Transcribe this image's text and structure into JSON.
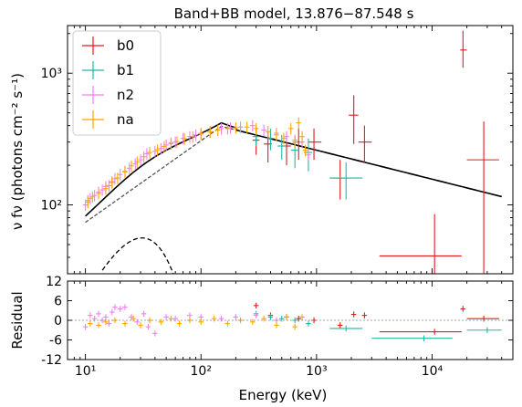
{
  "chart_data": [
    {
      "type": "scatter",
      "title": "Band+BB model, 13.876−87.548 s",
      "xlabel": "Energy (keV)",
      "ylabel": "ν fν (photons cm⁻² s⁻¹)",
      "xscale": "log",
      "yscale": "log",
      "xlim": [
        7,
        50000
      ],
      "ylim": [
        30,
        2300
      ],
      "legend": [
        "b0",
        "b1",
        "n2",
        "na"
      ],
      "legend_position": "top-left",
      "colors": {
        "b0": "#e41a1c",
        "b1": "#1fb8a6",
        "n2": "#ee82ee",
        "na": "#ffa500",
        "total_model": "#000000",
        "band_model": "#555555",
        "bb_model": "#000000"
      },
      "y_tick_labels": [
        "10²",
        "10³"
      ],
      "series": [
        {
          "name": "b0",
          "points": [
            {
              "x": 300,
              "y": 310,
              "xerr": [
                280,
                320
              ],
              "yerr": [
                240,
                380
              ]
            },
            {
              "x": 380,
              "y": 290,
              "xerr": [
                350,
                410
              ],
              "yerr": [
                210,
                360
              ]
            },
            {
              "x": 550,
              "y": 280,
              "xerr": [
                500,
                600
              ],
              "yerr": [
                200,
                350
              ]
            },
            {
              "x": 700,
              "y": 300,
              "xerr": [
                620,
                780
              ],
              "yerr": [
                220,
                380
              ]
            },
            {
              "x": 950,
              "y": 300,
              "xerr": [
                850,
                1100
              ],
              "yerr": [
                220,
                380
              ]
            },
            {
              "x": 1600,
              "y": 160,
              "xerr": [
                1350,
                1900
              ],
              "yerr": [
                110,
                220
              ]
            },
            {
              "x": 2100,
              "y": 480,
              "xerr": [
                1900,
                2300
              ],
              "yerr": [
                290,
                680
              ]
            },
            {
              "x": 2600,
              "y": 300,
              "xerr": [
                2300,
                3000
              ],
              "yerr": [
                210,
                400
              ]
            },
            {
              "x": 10500,
              "y": 41,
              "xerr": [
                3500,
                18000
              ],
              "yerr": [
                30,
                85
              ]
            },
            {
              "x": 18500,
              "y": 1500,
              "xerr": [
                17500,
                20000
              ],
              "yerr": [
                1100,
                2100
              ]
            },
            {
              "x": 28000,
              "y": 220,
              "xerr": [
                20000,
                38000
              ],
              "yerr": [
                30,
                430
              ]
            }
          ]
        },
        {
          "name": "b1",
          "points": [
            {
              "x": 300,
              "y": 330,
              "xerr": [
                280,
                320
              ],
              "yerr": [
                280,
                390
              ]
            },
            {
              "x": 400,
              "y": 320,
              "xerr": [
                370,
                430
              ],
              "yerr": [
                260,
                380
              ]
            },
            {
              "x": 500,
              "y": 280,
              "xerr": [
                460,
                540
              ],
              "yerr": [
                220,
                340
              ]
            },
            {
              "x": 650,
              "y": 260,
              "xerr": [
                600,
                700
              ],
              "yerr": [
                190,
                330
              ]
            },
            {
              "x": 850,
              "y": 250,
              "xerr": [
                780,
                920
              ],
              "yerr": [
                180,
                320
              ]
            },
            {
              "x": 1800,
              "y": 160,
              "xerr": [
                1300,
                2500
              ],
              "yerr": [
                110,
                210
              ]
            }
          ]
        },
        {
          "name": "n2",
          "points": [
            {
              "x": 10,
              "y": 100
            },
            {
              "x": 10.5,
              "y": 108
            },
            {
              "x": 11,
              "y": 112
            },
            {
              "x": 12,
              "y": 118
            },
            {
              "x": 13,
              "y": 125
            },
            {
              "x": 14,
              "y": 130
            },
            {
              "x": 15,
              "y": 138
            },
            {
              "x": 16,
              "y": 140
            },
            {
              "x": 17,
              "y": 150
            },
            {
              "x": 18,
              "y": 158
            },
            {
              "x": 20,
              "y": 170
            },
            {
              "x": 22,
              "y": 180
            },
            {
              "x": 24,
              "y": 190
            },
            {
              "x": 27,
              "y": 205
            },
            {
              "x": 30,
              "y": 220
            },
            {
              "x": 34,
              "y": 245
            },
            {
              "x": 40,
              "y": 255
            },
            {
              "x": 45,
              "y": 268
            },
            {
              "x": 50,
              "y": 285
            },
            {
              "x": 55,
              "y": 295
            },
            {
              "x": 60,
              "y": 300
            },
            {
              "x": 70,
              "y": 320
            },
            {
              "x": 80,
              "y": 330
            },
            {
              "x": 90,
              "y": 340
            },
            {
              "x": 100,
              "y": 350
            },
            {
              "x": 120,
              "y": 360
            },
            {
              "x": 150,
              "y": 380
            },
            {
              "x": 180,
              "y": 385
            },
            {
              "x": 220,
              "y": 390
            },
            {
              "x": 280,
              "y": 400
            },
            {
              "x": 350,
              "y": 370
            },
            {
              "x": 450,
              "y": 350
            },
            {
              "x": 550,
              "y": 330
            },
            {
              "x": 650,
              "y": 310
            },
            {
              "x": 750,
              "y": 300
            },
            {
              "x": 850,
              "y": 240
            }
          ]
        },
        {
          "name": "na",
          "points": [
            {
              "x": 10.5,
              "y": 105
            },
            {
              "x": 11.5,
              "y": 115
            },
            {
              "x": 13,
              "y": 122
            },
            {
              "x": 15,
              "y": 133
            },
            {
              "x": 17,
              "y": 148
            },
            {
              "x": 19,
              "y": 160
            },
            {
              "x": 22,
              "y": 178
            },
            {
              "x": 25,
              "y": 198
            },
            {
              "x": 28,
              "y": 212
            },
            {
              "x": 32,
              "y": 232
            },
            {
              "x": 36,
              "y": 250
            },
            {
              "x": 42,
              "y": 262
            },
            {
              "x": 48,
              "y": 278
            },
            {
              "x": 55,
              "y": 292
            },
            {
              "x": 62,
              "y": 302
            },
            {
              "x": 72,
              "y": 318
            },
            {
              "x": 85,
              "y": 330
            },
            {
              "x": 100,
              "y": 345
            },
            {
              "x": 120,
              "y": 358
            },
            {
              "x": 140,
              "y": 370
            },
            {
              "x": 170,
              "y": 380
            },
            {
              "x": 200,
              "y": 385
            },
            {
              "x": 250,
              "y": 390
            },
            {
              "x": 300,
              "y": 380
            },
            {
              "x": 380,
              "y": 360
            },
            {
              "x": 450,
              "y": 340
            },
            {
              "x": 520,
              "y": 320
            },
            {
              "x": 600,
              "y": 380
            },
            {
              "x": 650,
              "y": 300
            },
            {
              "x": 700,
              "y": 420
            },
            {
              "x": 750,
              "y": 330
            },
            {
              "x": 800,
              "y": 260
            }
          ]
        }
      ]
    },
    {
      "type": "scatter",
      "xlabel": "Energy (keV)",
      "ylabel": "Residual",
      "xscale": "log",
      "xlim": [
        7,
        50000
      ],
      "ylim": [
        -12,
        12
      ],
      "y_ticks": [
        -12,
        -6,
        0,
        6,
        12
      ],
      "x_tick_labels": [
        "10¹",
        "10²",
        "10³",
        "10⁴"
      ],
      "series": [
        {
          "name": "b0",
          "points": [
            {
              "x": 300,
              "y": 4.5
            },
            {
              "x": 400,
              "y": 1.5
            },
            {
              "x": 550,
              "y": 1.0
            },
            {
              "x": 700,
              "y": 0.5
            },
            {
              "x": 950,
              "y": 0.0
            },
            {
              "x": 1600,
              "y": -1.5
            },
            {
              "x": 2100,
              "y": 1.8
            },
            {
              "x": 2600,
              "y": 1.5
            },
            {
              "x": 10500,
              "y": -3.5,
              "xerr": [
                3500,
                18000
              ]
            },
            {
              "x": 18500,
              "y": 3.5
            },
            {
              "x": 28000,
              "y": 0.5,
              "xerr": [
                20000,
                38000
              ]
            }
          ]
        },
        {
          "name": "b1",
          "points": [
            {
              "x": 300,
              "y": 2.0
            },
            {
              "x": 400,
              "y": 1.0
            },
            {
              "x": 500,
              "y": 0.5
            },
            {
              "x": 650,
              "y": 0.0
            },
            {
              "x": 850,
              "y": -1.0
            },
            {
              "x": 1800,
              "y": -2.5,
              "xerr": [
                1300,
                2500
              ]
            },
            {
              "x": 8500,
              "y": -5.5,
              "xerr": [
                3000,
                15000
              ]
            },
            {
              "x": 30000,
              "y": -3.0,
              "xerr": [
                20000,
                40000
              ]
            }
          ]
        },
        {
          "name": "n2",
          "points": [
            {
              "x": 10,
              "y": -2.0
            },
            {
              "x": 11,
              "y": 1.5
            },
            {
              "x": 12,
              "y": 0.5
            },
            {
              "x": 13,
              "y": 2.0
            },
            {
              "x": 14,
              "y": 0.0
            },
            {
              "x": 15,
              "y": 1.0
            },
            {
              "x": 16,
              "y": -1.0
            },
            {
              "x": 17,
              "y": 2.5
            },
            {
              "x": 18,
              "y": 4.0
            },
            {
              "x": 20,
              "y": 3.5
            },
            {
              "x": 22,
              "y": 4.0
            },
            {
              "x": 25,
              "y": 1.0
            },
            {
              "x": 28,
              "y": -0.5
            },
            {
              "x": 32,
              "y": 2.0
            },
            {
              "x": 35,
              "y": -2.0
            },
            {
              "x": 40,
              "y": -4.0
            },
            {
              "x": 50,
              "y": 1.0
            },
            {
              "x": 60,
              "y": 0.5
            },
            {
              "x": 80,
              "y": 1.5
            },
            {
              "x": 100,
              "y": 1.0
            },
            {
              "x": 150,
              "y": 0.5
            },
            {
              "x": 200,
              "y": 1.0
            },
            {
              "x": 300,
              "y": 1.5
            },
            {
              "x": 450,
              "y": 0.0
            }
          ]
        },
        {
          "name": "na",
          "points": [
            {
              "x": 11,
              "y": -1.0
            },
            {
              "x": 13,
              "y": -1.5
            },
            {
              "x": 15,
              "y": -0.5
            },
            {
              "x": 18,
              "y": 0.0
            },
            {
              "x": 22,
              "y": -1.0
            },
            {
              "x": 26,
              "y": 0.5
            },
            {
              "x": 30,
              "y": -1.5
            },
            {
              "x": 36,
              "y": 0.0
            },
            {
              "x": 45,
              "y": -0.5
            },
            {
              "x": 55,
              "y": 0.5
            },
            {
              "x": 65,
              "y": -1.0
            },
            {
              "x": 80,
              "y": 0.0
            },
            {
              "x": 100,
              "y": -0.5
            },
            {
              "x": 130,
              "y": 0.5
            },
            {
              "x": 170,
              "y": -1.0
            },
            {
              "x": 220,
              "y": 0.0
            },
            {
              "x": 280,
              "y": -0.5
            },
            {
              "x": 350,
              "y": 0.5
            },
            {
              "x": 450,
              "y": -1.5
            },
            {
              "x": 550,
              "y": 1.0
            },
            {
              "x": 650,
              "y": -2.0
            },
            {
              "x": 750,
              "y": 1.0
            }
          ]
        }
      ]
    }
  ]
}
